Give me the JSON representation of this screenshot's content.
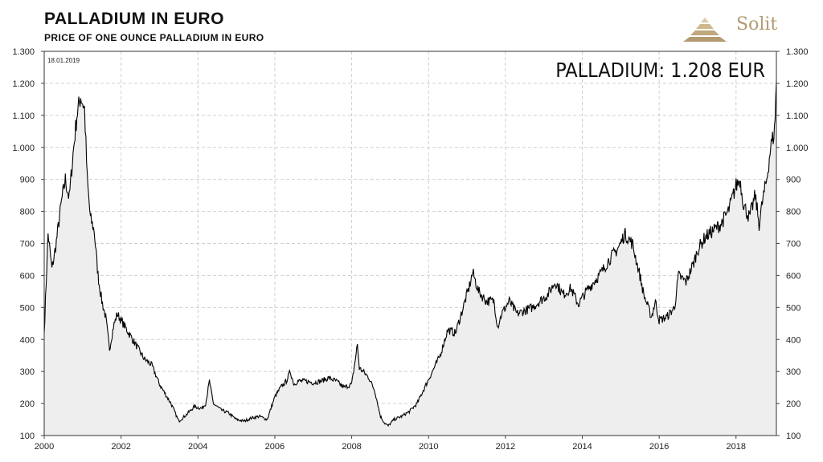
{
  "header": {
    "title": "PALLADIUM  IN  EURO",
    "subtitle": "PRICE OF ONE OUNCE PALLADIUM IN EURO"
  },
  "logo": {
    "text": "Solit",
    "icon": "pyramid-icon",
    "color": "#b39a72"
  },
  "chart_data": {
    "type": "area",
    "date_label": "18.01.2019",
    "annotation": "PALLADIUM: 1.208 EUR",
    "xlim": [
      2000,
      2019.05
    ],
    "ylim": [
      100,
      1300
    ],
    "x_ticks": [
      "2000",
      "2002",
      "2004",
      "2006",
      "2008",
      "2010",
      "2012",
      "2014",
      "2016",
      "2018"
    ],
    "y_ticks": [
      "100",
      "200",
      "300",
      "400",
      "500",
      "600",
      "700",
      "800",
      "900",
      "1.000",
      "1.100",
      "1.200",
      "1.300"
    ],
    "grid": true,
    "line_color": "#000000",
    "fill_color": "#eeeeee",
    "series": [
      {
        "x": [
          2000.0,
          2000.1,
          2000.2,
          2000.3,
          2000.45,
          2000.55,
          2000.65,
          2000.75,
          2000.85,
          2000.95,
          2001.05,
          2001.12,
          2001.2,
          2001.3,
          2001.4,
          2001.5,
          2001.6,
          2001.7,
          2001.8,
          2001.9,
          2002.0,
          2002.2,
          2002.4,
          2002.6,
          2002.8,
          2003.0,
          2003.2,
          2003.3,
          2003.5,
          2003.7,
          2003.9,
          2004.1,
          2004.2,
          2004.3,
          2004.4,
          2004.6,
          2004.8,
          2005.0,
          2005.2,
          2005.4,
          2005.6,
          2005.8,
          2006.0,
          2006.15,
          2006.3,
          2006.4,
          2006.5,
          2006.6,
          2006.8,
          2007.0,
          2007.2,
          2007.4,
          2007.6,
          2007.8,
          2008.0,
          2008.15,
          2008.2,
          2008.3,
          2008.45,
          2008.6,
          2008.75,
          2008.85,
          2008.95,
          2009.1,
          2009.3,
          2009.5,
          2009.7,
          2009.9,
          2010.1,
          2010.3,
          2010.5,
          2010.7,
          2010.9,
          2011.05,
          2011.15,
          2011.3,
          2011.5,
          2011.7,
          2011.8,
          2011.9,
          2012.1,
          2012.3,
          2012.5,
          2012.7,
          2012.9,
          2013.1,
          2013.3,
          2013.5,
          2013.7,
          2013.9,
          2014.1,
          2014.3,
          2014.5,
          2014.7,
          2014.9,
          2015.0,
          2015.1,
          2015.3,
          2015.5,
          2015.6,
          2015.8,
          2015.9,
          2016.0,
          2016.2,
          2016.4,
          2016.5,
          2016.7,
          2016.9,
          2017.0,
          2017.2,
          2017.4,
          2017.6,
          2017.8,
          2018.0,
          2018.1,
          2018.2,
          2018.35,
          2018.5,
          2018.6,
          2018.7,
          2018.8,
          2018.9,
          2019.0,
          2019.05
        ],
        "y": [
          420,
          730,
          620,
          690,
          830,
          900,
          840,
          980,
          1100,
          1160,
          1120,
          900,
          780,
          740,
          600,
          520,
          470,
          370,
          440,
          480,
          460,
          420,
          380,
          340,
          320,
          260,
          220,
          200,
          145,
          165,
          190,
          185,
          200,
          270,
          200,
          180,
          170,
          150,
          145,
          155,
          160,
          150,
          220,
          250,
          270,
          300,
          260,
          270,
          270,
          265,
          270,
          280,
          270,
          250,
          260,
          385,
          310,
          300,
          280,
          240,
          160,
          140,
          130,
          150,
          160,
          175,
          200,
          250,
          300,
          350,
          430,
          420,
          500,
          560,
          610,
          550,
          520,
          520,
          440,
          480,
          520,
          480,
          490,
          500,
          520,
          540,
          580,
          540,
          560,
          510,
          550,
          580,
          610,
          650,
          680,
          700,
          730,
          700,
          600,
          540,
          470,
          520,
          460,
          470,
          500,
          600,
          580,
          640,
          680,
          720,
          740,
          760,
          800,
          880,
          900,
          820,
          780,
          850,
          760,
          840,
          900,
          1000,
          1050,
          1208
        ]
      }
    ]
  }
}
